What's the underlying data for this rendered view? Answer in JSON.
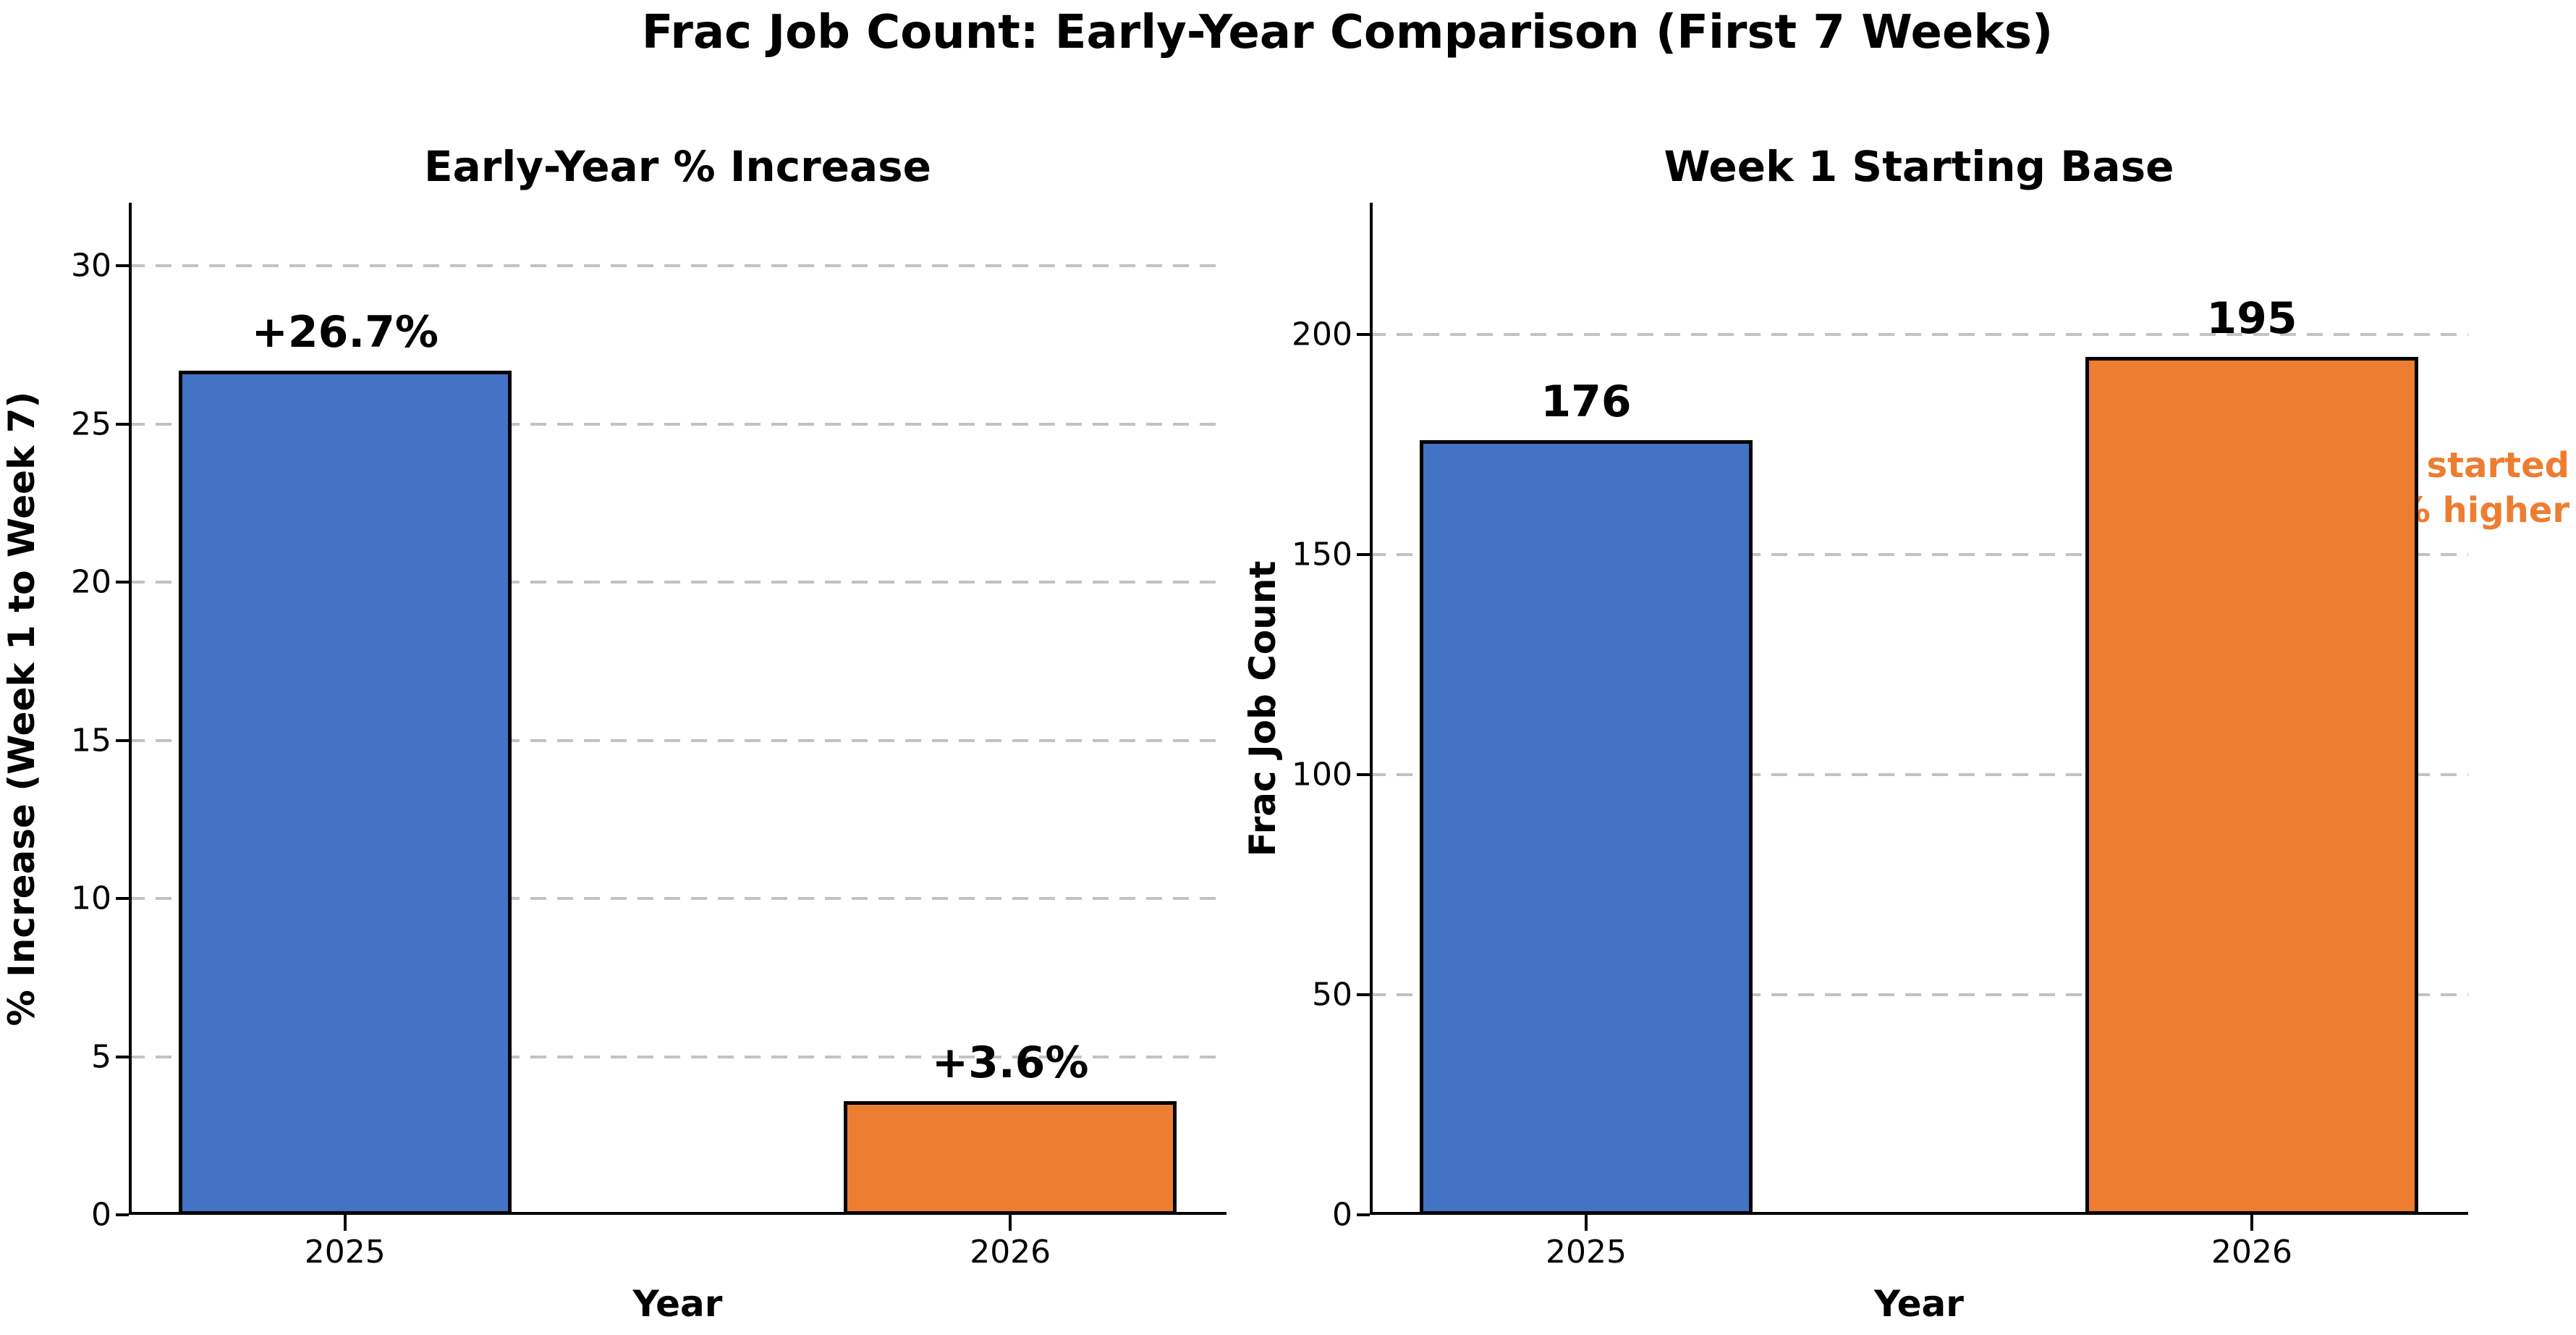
{
  "figure": {
    "title": "Frac Job Count: Early-Year Comparison (First 7 Weeks)",
    "background": "#ffffff"
  },
  "colors": {
    "blue": "#4472C4",
    "orange": "#ED7D31",
    "bar_edge": "#000000",
    "grid": "#c2c2c2",
    "axis": "#000000"
  },
  "chart_data": [
    {
      "type": "bar",
      "title": "Early-Year % Increase",
      "xlabel": "Year",
      "ylabel": "% Increase (Week 1 to Week 7)",
      "categories": [
        "2025",
        "2026"
      ],
      "values": [
        26.7,
        3.6
      ],
      "bar_labels": [
        "+26.7%",
        "+3.6%"
      ],
      "bar_colors": [
        "#4472C4",
        "#ED7D31"
      ],
      "ylim": [
        0,
        32
      ],
      "yticks": [
        0,
        5,
        10,
        15,
        20,
        25,
        30
      ],
      "xlim": [
        -0.325,
        1.325
      ],
      "bar_width": 0.5,
      "grid": "horizontal-dashed",
      "legend": "none"
    },
    {
      "type": "bar",
      "title": "Week 1 Starting Base",
      "xlabel": "Year",
      "ylabel": "Frac Job Count",
      "categories": [
        "2025",
        "2026"
      ],
      "values": [
        176,
        195
      ],
      "bar_labels": [
        "176",
        "195"
      ],
      "bar_colors": [
        "#4472C4",
        "#ED7D31"
      ],
      "ylim": [
        0,
        230
      ],
      "yticks": [
        0,
        50,
        100,
        150,
        200
      ],
      "xlim": [
        -0.325,
        1.325
      ],
      "bar_width": 0.5,
      "grid": "horizontal-dashed",
      "legend": "none",
      "annotation": {
        "lines": [
          "2026 started",
          "10.8% higher"
        ],
        "color": "#ED7D31"
      }
    }
  ]
}
